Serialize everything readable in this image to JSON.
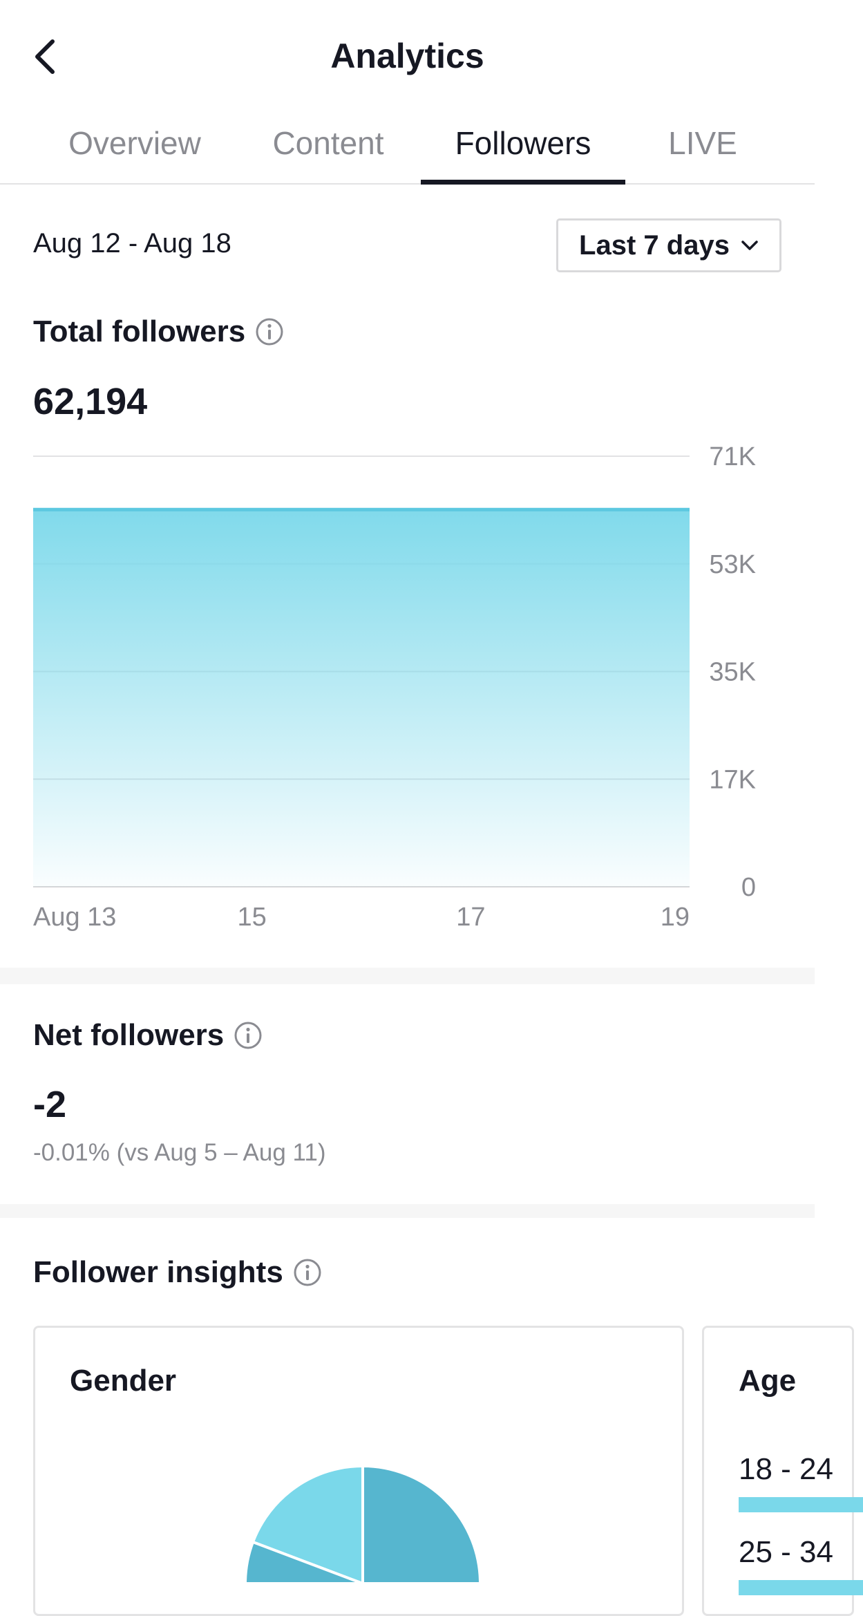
{
  "header": {
    "title": "Analytics",
    "back_icon": "chevron-left-icon"
  },
  "tabs": [
    {
      "label": "Overview",
      "active": false
    },
    {
      "label": "Content",
      "active": false
    },
    {
      "label": "Followers",
      "active": true
    },
    {
      "label": "LIVE",
      "active": false
    }
  ],
  "date_range": "Aug 12 - Aug 18",
  "range_select": {
    "label": "Last 7 days",
    "icon": "chevron-down-icon"
  },
  "total_followers": {
    "label": "Total followers",
    "value": "62,194",
    "icon": "info-icon"
  },
  "chart_data": {
    "type": "area",
    "x": [
      "Aug 13",
      "15",
      "17",
      "19"
    ],
    "series": [
      {
        "values": [
          62194,
          62194,
          62194,
          62194
        ]
      }
    ],
    "y_ticks": [
      "71K",
      "53K",
      "35K",
      "17K",
      "0"
    ],
    "ylim": [
      0,
      71000
    ],
    "grid": true,
    "color": "#5cc8e0"
  },
  "net_followers": {
    "label": "Net followers",
    "value": "-2",
    "comparison": "-0.01% (vs Aug 5 – Aug 11)",
    "icon": "info-icon"
  },
  "follower_insights": {
    "label": "Follower insights",
    "icon": "info-icon",
    "gender": {
      "title": "Gender",
      "colors": [
        "#56b6cf",
        "#7ad8ea"
      ]
    },
    "age": {
      "title": "Age",
      "rows": [
        {
          "label": "18 - 24"
        },
        {
          "label": "25 - 34"
        }
      ],
      "bar_color": "#7ad8ea"
    }
  },
  "colors": {
    "text": "#161823",
    "muted": "#8a8b91",
    "accent": "#5cc8e0"
  }
}
